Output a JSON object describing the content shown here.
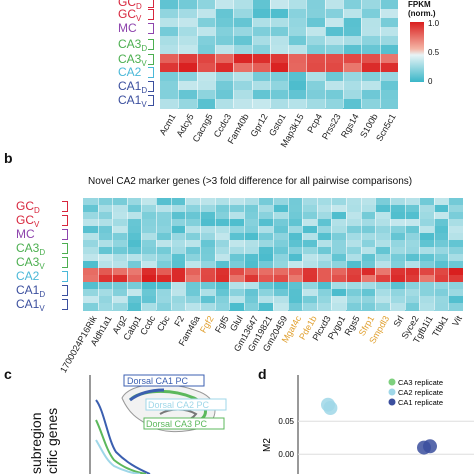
{
  "panel_b": {
    "letter": "b",
    "title": "Novel CA2 marker genes (>3 fold difference for all pairwise comparisons)"
  },
  "panel_c": {
    "letter": "c"
  },
  "panel_d": {
    "letter": "d"
  },
  "legend_fpkm": {
    "title": "FPKM",
    "subtitle": "(norm.)",
    "max_label": "1.0",
    "mid_label": "0.5",
    "min_label": "0"
  },
  "row_labels": [
    {
      "main": "GC",
      "sub": "D",
      "color": "#d7263d"
    },
    {
      "main": "GC",
      "sub": "V",
      "color": "#d7263d"
    },
    {
      "main": "MC",
      "sub": "",
      "color": "#8e44ad"
    },
    {
      "main": "CA3",
      "sub": "D",
      "color": "#4caf50"
    },
    {
      "main": "CA3",
      "sub": "V",
      "color": "#4caf50"
    },
    {
      "main": "CA2",
      "sub": "",
      "color": "#4ab8d8"
    },
    {
      "main": "CA1",
      "sub": "D",
      "color": "#3b4f9e"
    },
    {
      "main": "CA1",
      "sub": "V",
      "color": "#3b4f9e"
    }
  ],
  "panel_a_genes": [
    "Acm1",
    "Adcy5",
    "Cacng5",
    "Ccdc3",
    "Fam40b",
    "Gpr12",
    "Gsto1",
    "Map3k15",
    "Pcp4",
    "Prss23",
    "Rgs14",
    "S100b",
    "Scn5c1"
  ],
  "panel_b_genes": [
    {
      "name": "1700024P16Rik",
      "color": "#222222"
    },
    {
      "name": "Aldh1a1",
      "color": "#222222"
    },
    {
      "name": "Arg2",
      "color": "#222222"
    },
    {
      "name": "Cabp1",
      "color": "#222222"
    },
    {
      "name": "Ccdc",
      "color": "#222222"
    },
    {
      "name": "Cbc",
      "color": "#222222"
    },
    {
      "name": "F2",
      "color": "#222222"
    },
    {
      "name": "Fam46a",
      "color": "#222222"
    },
    {
      "name": "Fgf2",
      "color": "#e0a030"
    },
    {
      "name": "Fgf5",
      "color": "#222222"
    },
    {
      "name": "Glul",
      "color": "#222222"
    },
    {
      "name": "Gm13647",
      "color": "#222222"
    },
    {
      "name": "Gm19821",
      "color": "#222222"
    },
    {
      "name": "Gm20459",
      "color": "#222222"
    },
    {
      "name": "Mgat4c",
      "color": "#e0a030"
    },
    {
      "name": "Pde1b",
      "color": "#e0a030"
    },
    {
      "name": "Plcxd3",
      "color": "#222222"
    },
    {
      "name": "Pygo1",
      "color": "#222222"
    },
    {
      "name": "Rgs5",
      "color": "#222222"
    },
    {
      "name": "Sfrp1",
      "color": "#e0a030"
    },
    {
      "name": "Smpdl3",
      "color": "#e0a030"
    },
    {
      "name": "Srl",
      "color": "#222222"
    },
    {
      "name": "Syce2",
      "color": "#222222"
    },
    {
      "name": "Tgfb1i1",
      "color": "#222222"
    },
    {
      "name": "Ttbk1",
      "color": "#222222"
    },
    {
      "name": "Vit",
      "color": "#222222"
    }
  ],
  "panel_c_content": {
    "ylabel_line1": "subregion",
    "ylabel_line2": "cific genes",
    "inset_labels": [
      "Dorsal CA1 PC",
      "Dorsal CA2 PC",
      "Dorsal CA3 PC"
    ],
    "colors": {
      "ca1": "#3b5fb0",
      "ca2": "#9fd7e8",
      "ca3": "#5cb85c"
    }
  },
  "chart_data": {
    "type": "scatter",
    "ylabel": "M2",
    "y_ticks": [
      "0.05",
      "0.00"
    ],
    "legend": [
      {
        "name": "CA3 replicate",
        "color": "#7ed07e"
      },
      {
        "name": "CA2 replicate",
        "color": "#9fd7e8"
      },
      {
        "name": "CA1 replicate",
        "color": "#3b4f9e"
      }
    ],
    "series": [
      {
        "name": "CA2 replicate",
        "points": [
          [
            0.0,
            0.075
          ],
          [
            0.02,
            0.07
          ]
        ]
      },
      {
        "name": "CA1 replicate",
        "points": [
          [
            0.8,
            0.01
          ],
          [
            0.85,
            0.012
          ]
        ]
      }
    ],
    "ylim": [
      -0.03,
      0.12
    ]
  }
}
